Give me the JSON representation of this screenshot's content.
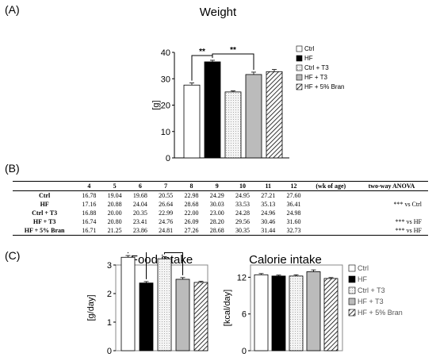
{
  "panels": {
    "a": "(A)",
    "b": "(B)",
    "c": "(C)"
  },
  "colors": {
    "ctrl": "#ffffff",
    "hf": "#000000",
    "ctrl_t3": "#eeeeee",
    "hf_t3": "#bbbbbb",
    "bran": "hatch"
  },
  "chart_data": [
    {
      "type": "bar",
      "title": "Weight",
      "ylabel": "[g]",
      "ylim": [
        0,
        40
      ],
      "yticks": [
        "0",
        "10",
        "20",
        "30",
        "40"
      ],
      "categories": [
        "Ctrl",
        "HF",
        "Ctrl + T3",
        "HF + T3",
        "HF + 5% Bran"
      ],
      "values": [
        27.6,
        36.4,
        25.0,
        31.6,
        32.7
      ],
      "errors": [
        0.8,
        0.6,
        0.4,
        0.9,
        0.8
      ],
      "legend": [
        "Ctrl",
        "HF",
        "Ctrl + T3",
        "HF + T3",
        "HF + 5% Bran"
      ],
      "legend_position": "right",
      "significance": [
        "**",
        "**"
      ]
    },
    {
      "type": "bar",
      "title": "Food intake",
      "ylabel": "[g/day]",
      "ylim": [
        0,
        3
      ],
      "yticks": [
        "0",
        "1",
        "2",
        "3"
      ],
      "categories": [
        "Ctrl",
        "HF",
        "Ctrl + T3",
        "HF + T3",
        "HF + 5% Bran"
      ],
      "values": [
        3.27,
        2.37,
        3.22,
        2.5,
        2.39
      ],
      "errors": [
        0.06,
        0.05,
        0.07,
        0.06,
        0.04
      ],
      "significance": [
        "**",
        "**"
      ]
    },
    {
      "type": "bar",
      "title": "Calorie intake",
      "ylabel": "[kcal/day]",
      "ylim": [
        0,
        14
      ],
      "yticks": [
        "0",
        "6",
        "12"
      ],
      "categories": [
        "Ctrl",
        "HF",
        "Ctrl + T3",
        "HF + T3",
        "HF + 5% Bran"
      ],
      "values": [
        12.4,
        12.2,
        12.2,
        12.9,
        11.8
      ],
      "errors": [
        0.2,
        0.15,
        0.2,
        0.3,
        0.15
      ],
      "legend": [
        "Ctrl",
        "HF",
        "Ctrl + T3",
        "HF + T3",
        "HF + 5% Bran"
      ],
      "legend_position": "right"
    },
    {
      "type": "table",
      "columns": [
        "",
        "4",
        "5",
        "6",
        "7",
        "8",
        "9",
        "10",
        "11",
        "12",
        "(wk of age)",
        "two-way ANOVA"
      ],
      "rows": [
        {
          "name": "Ctrl",
          "values": [
            "16.78",
            "19.04",
            "19.68",
            "20.55",
            "22.98",
            "24.29",
            "24.95",
            "27.21",
            "27.60"
          ],
          "anova": ""
        },
        {
          "name": "HF",
          "values": [
            "17.16",
            "20.88",
            "24.04",
            "26.64",
            "28.68",
            "30.03",
            "33.53",
            "35.13",
            "36.41"
          ],
          "anova": "*** vs Ctrl"
        },
        {
          "name": "Ctrl + T3",
          "values": [
            "16.88",
            "20.00",
            "20.35",
            "22.99",
            "22.00",
            "23.00",
            "24.28",
            "24.96",
            "24.98"
          ],
          "anova": ""
        },
        {
          "name": "HF + T3",
          "values": [
            "16.74",
            "20.80",
            "23.41",
            "24.76",
            "26.09",
            "28.20",
            "29.56",
            "30.46",
            "31.60"
          ],
          "anova": "*** vs HF"
        },
        {
          "name": "HF + 5% Bran",
          "values": [
            "16.71",
            "21.25",
            "23.86",
            "24.81",
            "27.26",
            "28.68",
            "30.35",
            "31.44",
            "32.73"
          ],
          "anova": "*** vs HF"
        }
      ]
    }
  ]
}
